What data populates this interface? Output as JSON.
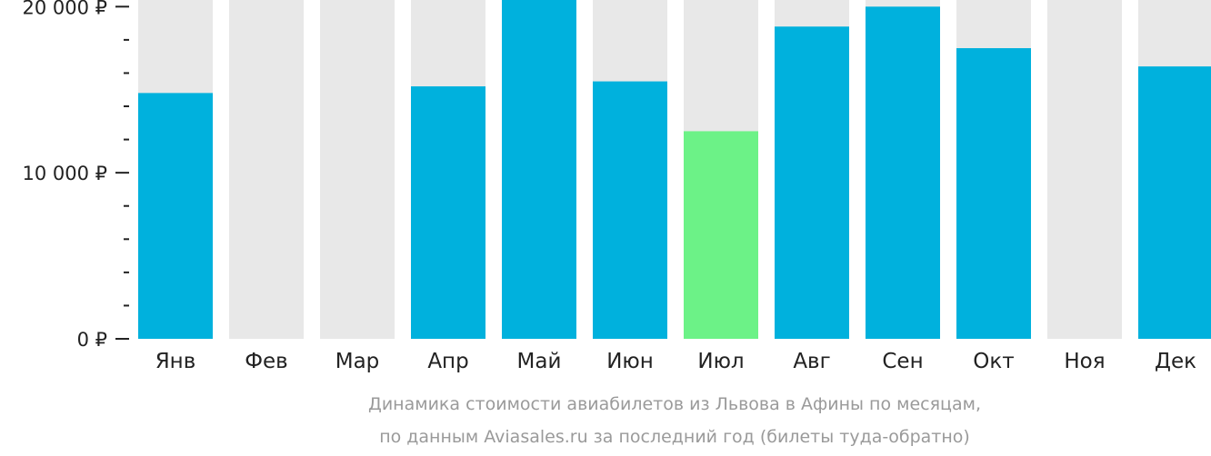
{
  "chart_data": {
    "type": "bar",
    "categories": [
      "Янв",
      "Фев",
      "Мар",
      "Апр",
      "Май",
      "Июн",
      "Июл",
      "Авг",
      "Сен",
      "Окт",
      "Ноя",
      "Дек"
    ],
    "values": [
      14800,
      null,
      null,
      15200,
      20400,
      15500,
      12500,
      18800,
      20000,
      17500,
      null,
      16400
    ],
    "ylim": [
      0,
      20400
    ],
    "yticks": [
      0,
      10000,
      20000
    ],
    "ytick_labels": [
      "0 ₽",
      "10 000 ₽",
      "20 000 ₽"
    ],
    "minor_tick_step": 2000,
    "highlight_category": "Июл",
    "colors": {
      "bar": "#00b1dd",
      "highlight": "#6cf287",
      "background_column": "#e8e8e8",
      "axis": "#222222",
      "caption": "#9a9a9a"
    },
    "caption_lines": [
      "Динамика стоимости авиабилетов из Львова в Афины по месяцам,",
      "по данным Aviasales.ru за последний год (билеты туда-обратно)"
    ]
  }
}
